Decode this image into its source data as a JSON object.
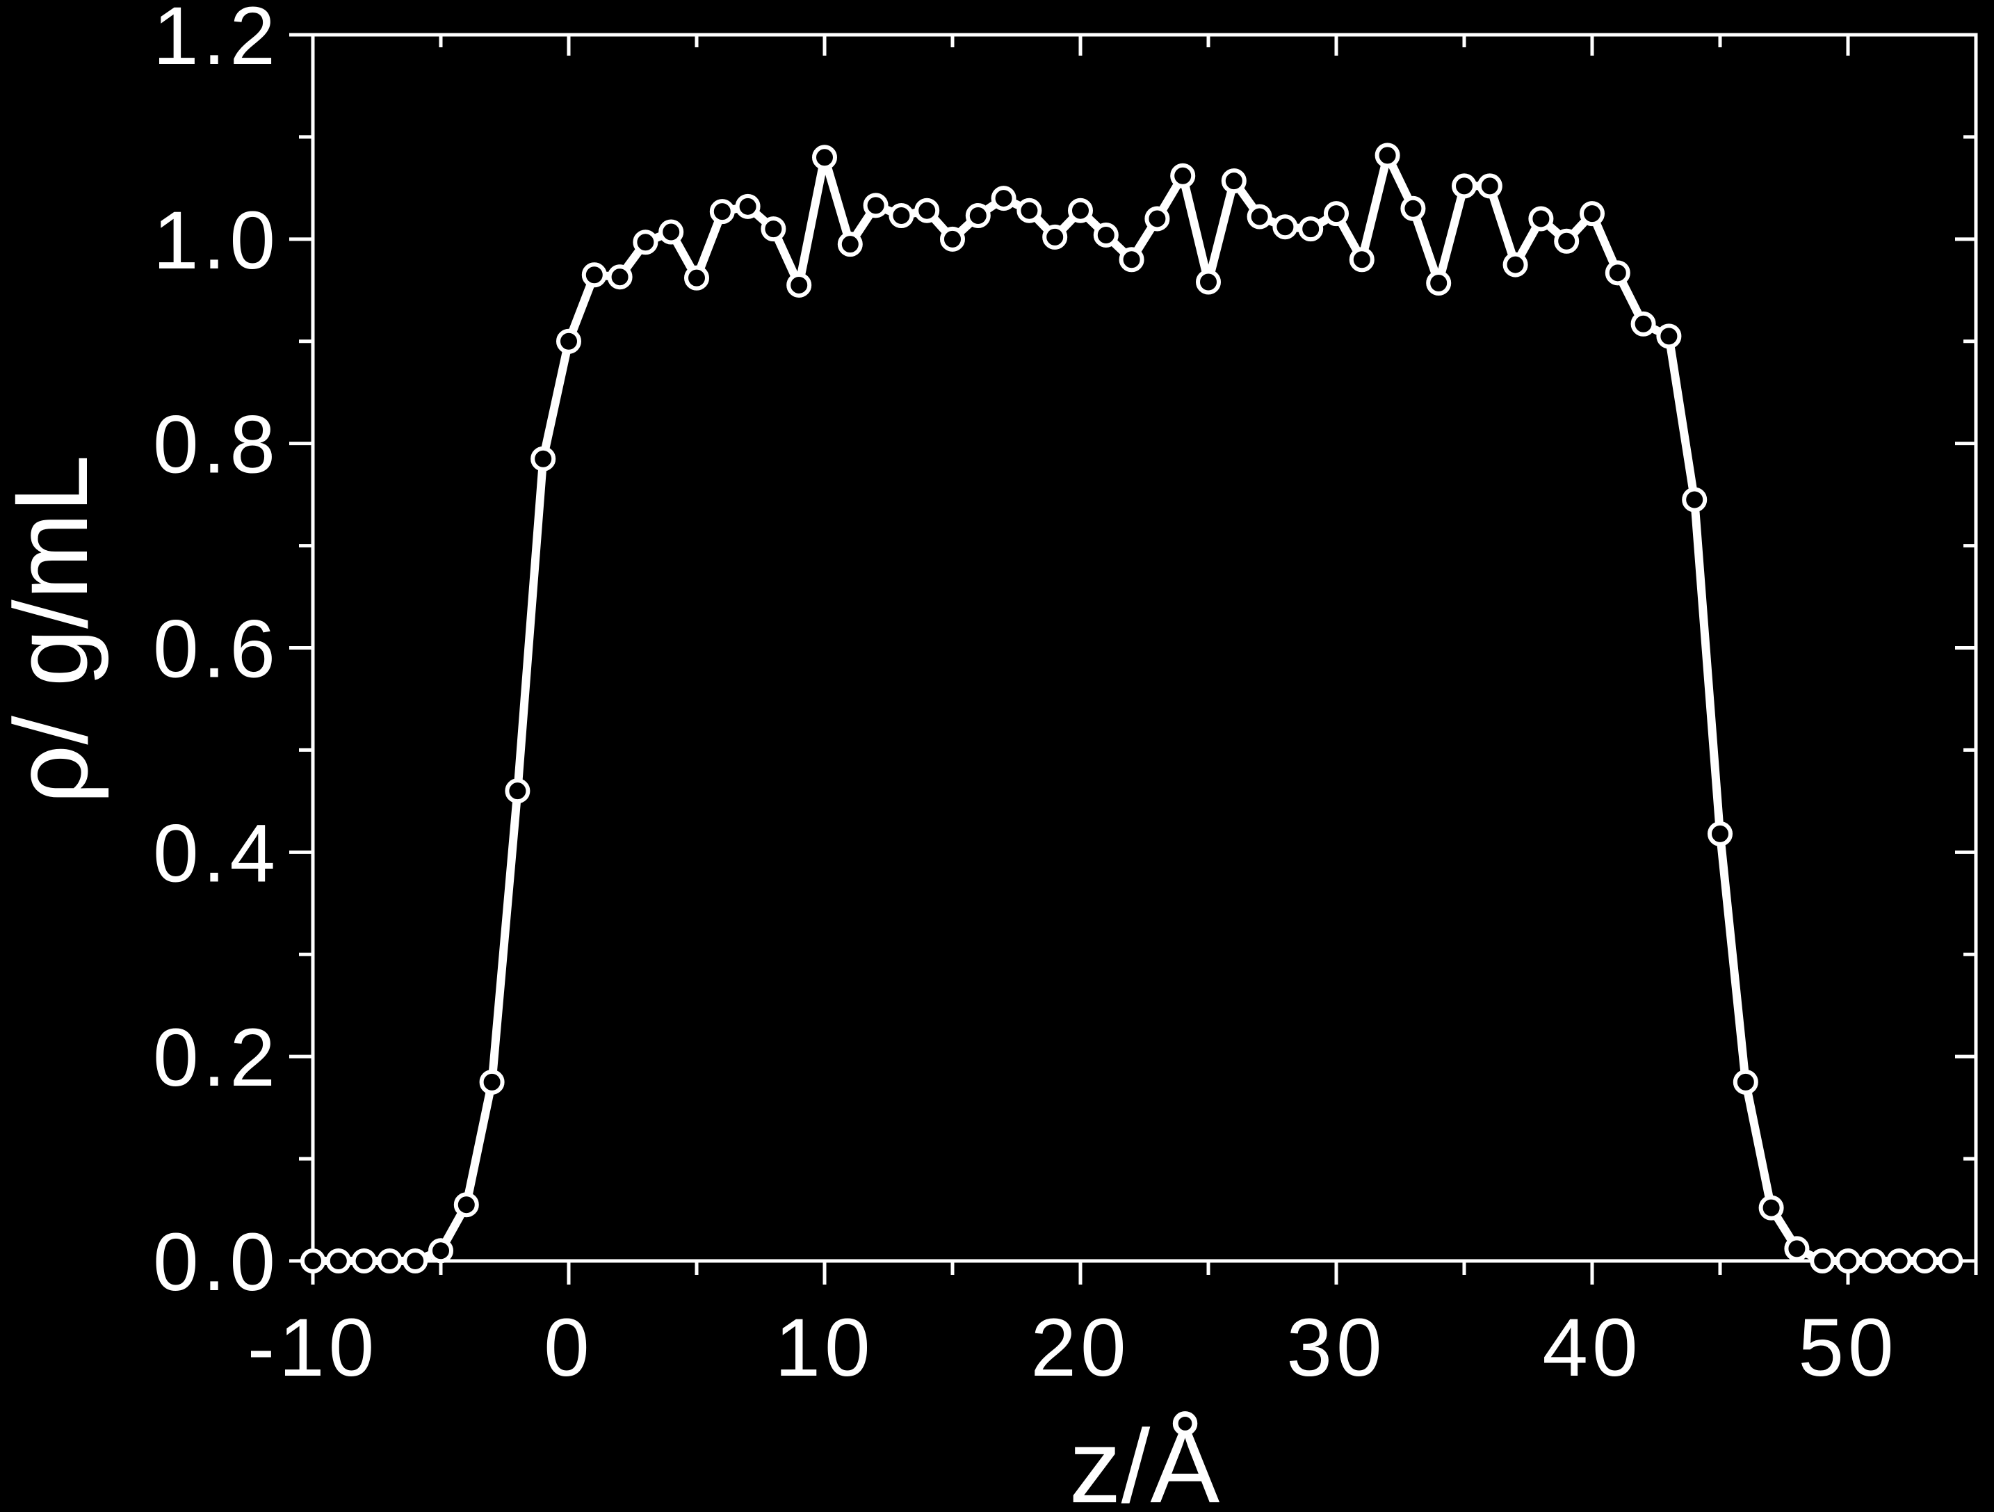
{
  "chart_data": {
    "type": "line",
    "xlabel": "z/Å",
    "ylabel": "ρ/ g/mL",
    "xlim": [
      -10,
      55
    ],
    "ylim": [
      0,
      1.2
    ],
    "x_ticks": [
      -10,
      0,
      10,
      20,
      30,
      40,
      50
    ],
    "x_tick_labels": [
      "-10",
      "0",
      "10",
      "20",
      "30",
      "40",
      "50"
    ],
    "y_ticks": [
      0,
      0.2,
      0.4,
      0.6,
      0.8,
      1.0,
      1.2
    ],
    "y_tick_labels": [
      "0.0",
      "0.2",
      "0.4",
      "0.6",
      "0.8",
      "1.0",
      "1.2"
    ],
    "grid": false,
    "colors": {
      "background": "#000000",
      "foreground": "#ffffff"
    },
    "series": [
      {
        "marker": "open-circle",
        "x": [
          -10,
          -9,
          -8,
          -7,
          -6,
          -5,
          -4,
          -3,
          -2,
          -1,
          0,
          1,
          2,
          3,
          4,
          5,
          6,
          7,
          8,
          9,
          10,
          11,
          12,
          13,
          14,
          15,
          16,
          17,
          18,
          19,
          20,
          21,
          22,
          23,
          24,
          25,
          26,
          27,
          28,
          29,
          30,
          31,
          32,
          33,
          34,
          35,
          36,
          37,
          38,
          39,
          40,
          41,
          42,
          43,
          44,
          45,
          46,
          47,
          48,
          49,
          50,
          51,
          52,
          53,
          54
        ],
        "y": [
          0.0,
          0.0,
          0.0,
          0.0,
          0.0,
          0.01,
          0.055,
          0.175,
          0.46,
          0.785,
          0.9,
          0.965,
          0.963,
          0.997,
          1.007,
          0.962,
          1.027,
          1.032,
          1.01,
          0.955,
          1.08,
          0.995,
          1.033,
          1.023,
          1.028,
          1.0,
          1.023,
          1.04,
          1.028,
          1.002,
          1.028,
          1.004,
          0.98,
          1.02,
          1.062,
          0.958,
          1.057,
          1.022,
          1.012,
          1.01,
          1.025,
          0.98,
          1.082,
          1.03,
          0.957,
          1.052,
          1.052,
          0.975,
          1.02,
          0.998,
          1.025,
          0.967,
          0.917,
          0.905,
          0.745,
          0.418,
          0.175,
          0.052,
          0.012,
          0.0,
          0.0,
          0.0,
          0.0,
          0.0,
          0.0
        ]
      }
    ]
  }
}
